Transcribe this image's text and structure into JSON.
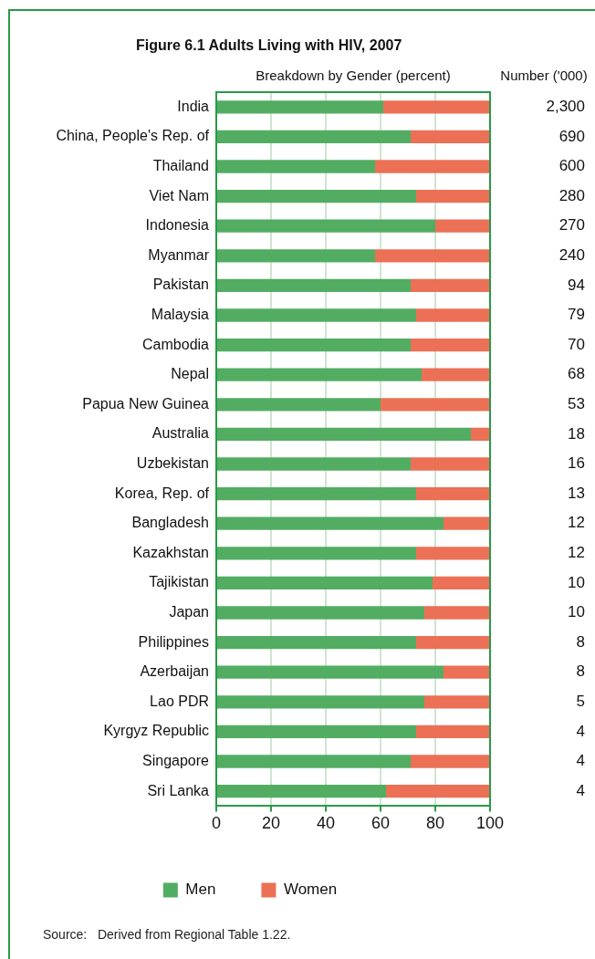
{
  "chart_data": {
    "type": "bar",
    "orientation": "horizontal",
    "stacked": true,
    "title": "Figure 6.1 Adults Living with HIV, 2007",
    "xlabel": "Breakdown by Gender (percent)",
    "y2label": "Number ('000)",
    "categories": [
      "India",
      "China, People's Rep. of",
      "Thailand",
      "Viet Nam",
      "Indonesia",
      "Myanmar",
      "Pakistan",
      "Malaysia",
      "Cambodia",
      "Nepal",
      "Papua New Guinea",
      "Australia",
      "Uzbekistan",
      "Korea, Rep. of",
      "Bangladesh",
      "Kazakhstan",
      "Tajikistan",
      "Japan",
      "Philippines",
      "Azerbaijan",
      "Lao PDR",
      "Kyrgyz Republic",
      "Singapore",
      "Sri Lanka"
    ],
    "series": [
      {
        "name": "Men",
        "color": "#52ad62",
        "values": [
          61,
          71,
          58,
          73,
          80,
          58,
          71,
          73,
          71,
          75,
          60,
          93,
          71,
          73,
          83,
          73,
          79,
          76,
          73,
          83,
          76,
          73,
          71,
          62
        ]
      },
      {
        "name": "Women",
        "color": "#ec7055",
        "values": [
          39,
          29,
          42,
          27,
          20,
          42,
          29,
          27,
          29,
          25,
          40,
          7,
          29,
          27,
          17,
          27,
          21,
          24,
          27,
          17,
          24,
          27,
          29,
          38
        ]
      }
    ],
    "xlim": [
      0,
      100
    ],
    "xticks": [
      0,
      20,
      40,
      60,
      80,
      100
    ],
    "grid": "x",
    "legend": "bottom",
    "annotations": [
      "2,300",
      "690",
      "600",
      "280",
      "270",
      "240",
      "94",
      "79",
      "70",
      "68",
      "53",
      "18",
      "16",
      "13",
      "12",
      "12",
      "10",
      "10",
      "8",
      "8",
      "5",
      "4",
      "4",
      "4",
      "Source:   Derived from Regional Table 1.22."
    ]
  }
}
